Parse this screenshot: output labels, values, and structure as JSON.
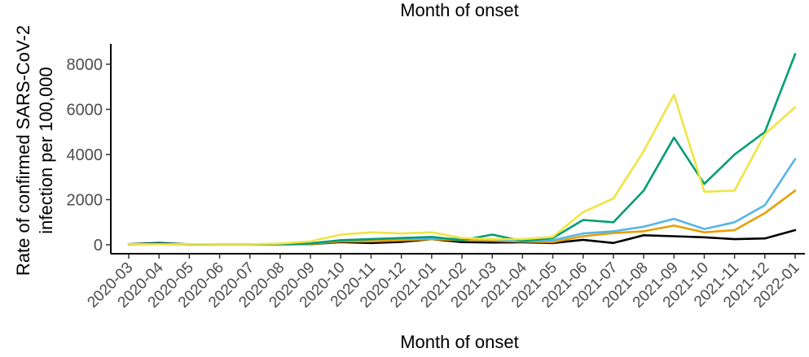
{
  "chart_data": {
    "type": "line",
    "title": "Month of onset",
    "xlabel": "Month of onset",
    "ylabel": [
      "Rate of confirmed SARS-CoV-2",
      "infection per 100,000"
    ],
    "x": [
      "2020-03",
      "2020-04",
      "2020-05",
      "2020-06",
      "2020-07",
      "2020-08",
      "2020-09",
      "2020-10",
      "2020-11",
      "2020-12",
      "2021-01",
      "2021-02",
      "2021-03",
      "2021-04",
      "2021-05",
      "2021-06",
      "2021-07",
      "2021-08",
      "2021-09",
      "2021-10",
      "2021-11",
      "2021-12",
      "2022-01"
    ],
    "yticks": [
      0,
      2000,
      4000,
      6000,
      8000
    ],
    "yticklabels": [
      "0",
      "2000",
      "4000",
      "6000",
      "8000"
    ],
    "ylim": [
      -300,
      8900
    ],
    "grid": false,
    "legend": "none",
    "series": [
      {
        "color": "#000000",
        "values": [
          30,
          80,
          20,
          10,
          10,
          20,
          30,
          120,
          80,
          130,
          250,
          120,
          100,
          110,
          80,
          220,
          80,
          420,
          380,
          330,
          250,
          280,
          650
        ]
      },
      {
        "color": "#E69F00",
        "values": [
          20,
          30,
          10,
          10,
          10,
          20,
          40,
          150,
          150,
          200,
          250,
          200,
          180,
          140,
          120,
          380,
          520,
          600,
          850,
          550,
          650,
          1400,
          2400
        ]
      },
      {
        "color": "#56B4E9",
        "values": [
          20,
          30,
          20,
          10,
          10,
          20,
          60,
          200,
          250,
          280,
          300,
          250,
          250,
          150,
          200,
          500,
          600,
          800,
          1150,
          700,
          1000,
          1750,
          3800
        ]
      },
      {
        "color": "#009E73",
        "values": [
          20,
          50,
          20,
          10,
          10,
          20,
          60,
          200,
          250,
          300,
          350,
          200,
          450,
          170,
          300,
          1100,
          1000,
          2400,
          4750,
          2700,
          4000,
          5000,
          8450
        ]
      },
      {
        "color": "#F0E442",
        "values": [
          30,
          20,
          30,
          20,
          20,
          50,
          150,
          450,
          550,
          500,
          550,
          300,
          250,
          250,
          350,
          1450,
          2050,
          4150,
          6650,
          2350,
          2400,
          4900,
          6100
        ]
      }
    ]
  }
}
